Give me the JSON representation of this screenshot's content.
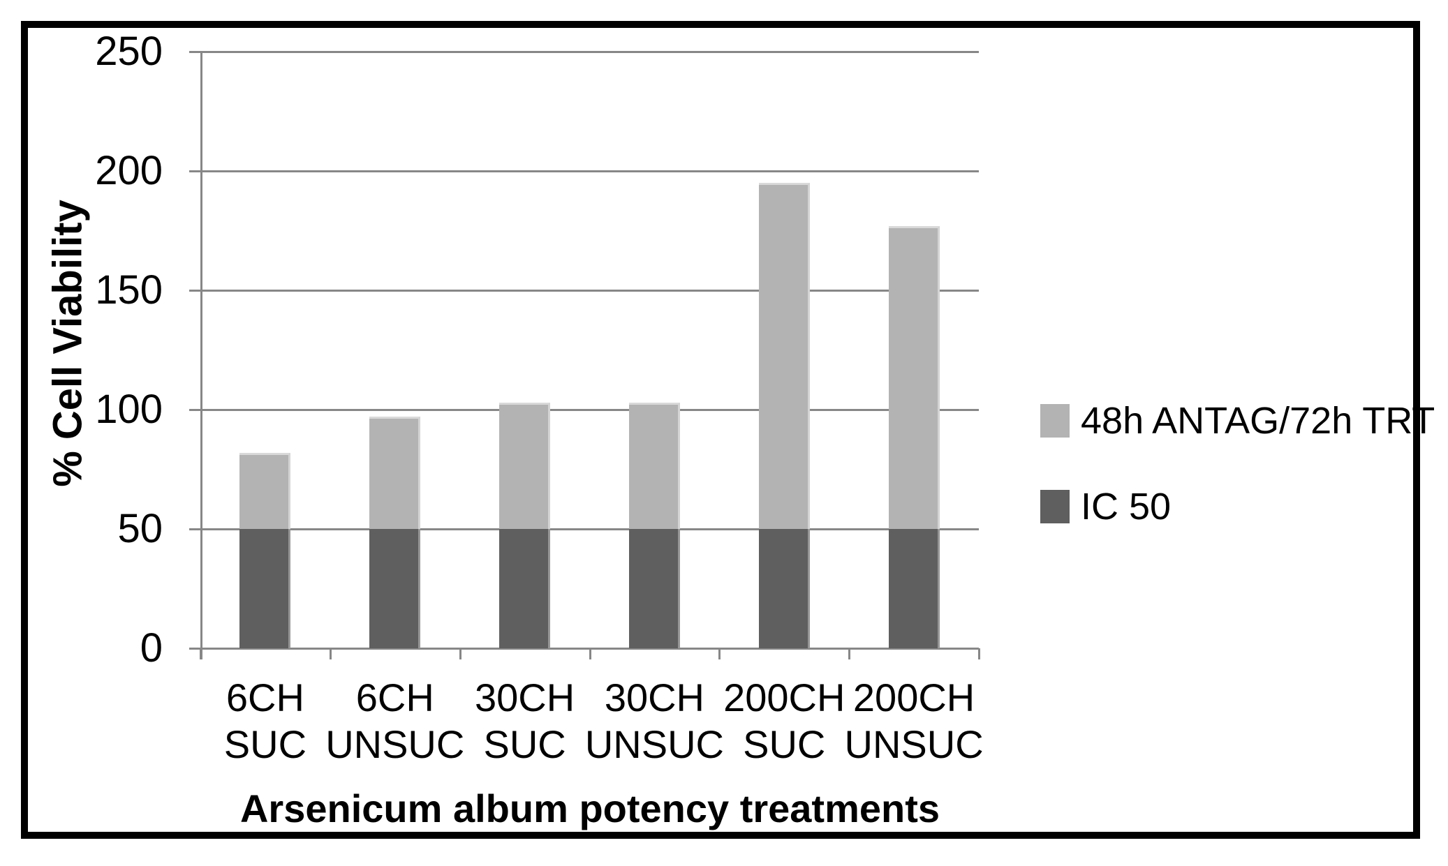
{
  "chart_data": {
    "type": "bar",
    "stacked": true,
    "title": "",
    "xlabel": "Arsenicum album potency treatments",
    "ylabel": "% Cell Viability",
    "categories": [
      {
        "line1": "6CH",
        "line2": "SUC"
      },
      {
        "line1": "6CH",
        "line2": "UNSUC"
      },
      {
        "line1": "30CH",
        "line2": "SUC"
      },
      {
        "line1": "30CH",
        "line2": "UNSUC"
      },
      {
        "line1": "200CH",
        "line2": "SUC"
      },
      {
        "line1": "200CH",
        "line2": "UNSUC"
      }
    ],
    "series": [
      {
        "name": "IC 50",
        "color": "#5f5f5f",
        "values": [
          50,
          50,
          50,
          50,
          50,
          50
        ]
      },
      {
        "name": "48h ANTAG/72h TRT",
        "color": "#b3b3b3",
        "values": [
          32,
          47,
          53,
          53,
          145,
          127
        ]
      }
    ],
    "stack_totals": [
      82,
      97,
      103,
      103,
      195,
      177
    ],
    "yticks": [
      0,
      50,
      100,
      150,
      200,
      250
    ],
    "ylim": [
      0,
      250
    ],
    "grid": true,
    "legend_position": "right"
  },
  "legend": {
    "entries": [
      {
        "label": "48h ANTAG/72h TRT",
        "color": "#b3b3b3"
      },
      {
        "label": "IC 50",
        "color": "#5f5f5f"
      }
    ]
  },
  "colors": {
    "background": "#ffffff",
    "frame_border": "#000000",
    "gridline": "#878787",
    "axis": "#878787",
    "bar_light": "#b3b3b3",
    "bar_dark": "#5f5f5f",
    "text": "#000000"
  }
}
